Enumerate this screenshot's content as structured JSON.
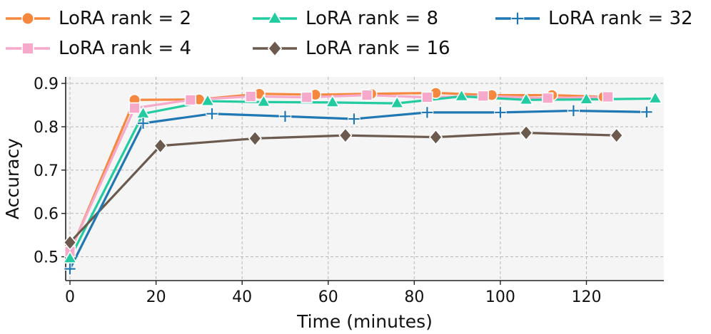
{
  "chart_data": {
    "type": "line",
    "xlabel": "Time (minutes)",
    "ylabel": "Accuracy",
    "xlim": [
      -1,
      138
    ],
    "ylim": [
      0.445,
      0.915
    ],
    "xticks": [
      0,
      20,
      40,
      60,
      80,
      100,
      120
    ],
    "yticks": [
      0.5,
      0.6,
      0.7,
      0.8,
      0.9
    ],
    "xtick_labels": [
      "0",
      "20",
      "40",
      "60",
      "80",
      "100",
      "120"
    ],
    "ytick_labels": [
      "0.5",
      "0.6",
      "0.7",
      "0.8",
      "0.9"
    ],
    "grid": true,
    "legend_position": "top",
    "series": [
      {
        "name": "LoRA rank = 2",
        "color": "#F5883E",
        "marker": "circle",
        "x": [
          0,
          15,
          30,
          44,
          57,
          70,
          85,
          98,
          112,
          124
        ],
        "y": [
          0.51,
          0.862,
          0.863,
          0.876,
          0.874,
          0.876,
          0.878,
          0.873,
          0.873,
          0.869
        ]
      },
      {
        "name": "LoRA rank = 4",
        "color": "#F6A9CA",
        "marker": "square",
        "x": [
          0,
          15,
          28,
          42,
          55,
          69,
          83,
          96,
          111,
          125
        ],
        "y": [
          0.512,
          0.843,
          0.862,
          0.87,
          0.868,
          0.873,
          0.868,
          0.871,
          0.866,
          0.869
        ]
      },
      {
        "name": "LoRA rank = 8",
        "color": "#22CCA0",
        "marker": "triangle",
        "x": [
          0,
          17,
          32,
          45,
          61,
          76,
          91,
          106,
          120,
          136
        ],
        "y": [
          0.496,
          0.83,
          0.859,
          0.857,
          0.856,
          0.854,
          0.87,
          0.862,
          0.863,
          0.865
        ]
      },
      {
        "name": "LoRA rank = 16",
        "color": "#6B5A4D",
        "marker": "diamond",
        "x": [
          0,
          21,
          43,
          64,
          85,
          106,
          127
        ],
        "y": [
          0.533,
          0.756,
          0.773,
          0.78,
          0.776,
          0.786,
          0.78
        ]
      },
      {
        "name": "LoRA rank = 32",
        "color": "#1F77B4",
        "marker": "plus",
        "x": [
          0,
          17,
          33,
          50,
          66,
          83,
          100,
          117,
          134
        ],
        "y": [
          0.472,
          0.808,
          0.83,
          0.824,
          0.818,
          0.833,
          0.833,
          0.837,
          0.834
        ]
      }
    ]
  }
}
